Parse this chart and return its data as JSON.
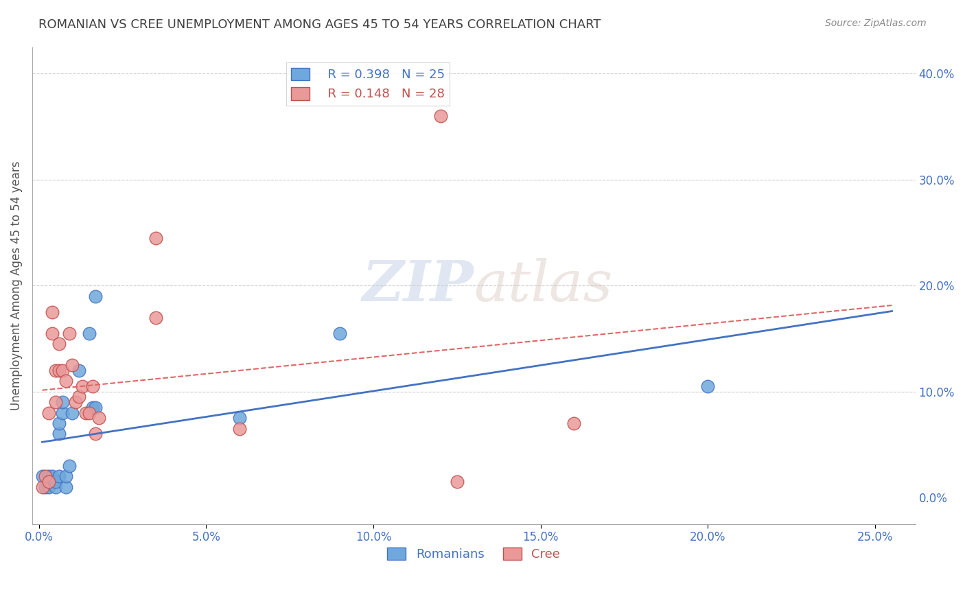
{
  "title": "ROMANIAN VS CREE UNEMPLOYMENT AMONG AGES 45 TO 54 YEARS CORRELATION CHART",
  "source": "Source: ZipAtlas.com",
  "xlabel_ticks": [
    0.0,
    0.05,
    0.1,
    0.15,
    0.2,
    0.25
  ],
  "ylabel_ticks": [
    0.0,
    0.1,
    0.2,
    0.3,
    0.4
  ],
  "xlim": [
    -0.002,
    0.262
  ],
  "ylim": [
    -0.025,
    0.425
  ],
  "ylabel": "Unemployment Among Ages 45 to 54 years",
  "romanians_color": "#6fa8dc",
  "cree_color": "#ea9999",
  "romanians_line_color": "#4472c4",
  "cree_line_color": "#e06666",
  "cree_edge_color": "#c0504d",
  "R_romanians": 0.398,
  "N_romanians": 25,
  "R_cree": 0.148,
  "N_cree": 28,
  "romanians_x": [
    0.001,
    0.002,
    0.003,
    0.003,
    0.004,
    0.004,
    0.005,
    0.005,
    0.006,
    0.006,
    0.006,
    0.007,
    0.007,
    0.008,
    0.008,
    0.009,
    0.01,
    0.012,
    0.015,
    0.016,
    0.017,
    0.017,
    0.06,
    0.09,
    0.2
  ],
  "romanians_y": [
    0.02,
    0.01,
    0.01,
    0.02,
    0.015,
    0.02,
    0.01,
    0.015,
    0.02,
    0.06,
    0.07,
    0.08,
    0.09,
    0.01,
    0.02,
    0.03,
    0.08,
    0.12,
    0.155,
    0.085,
    0.085,
    0.19,
    0.075,
    0.155,
    0.105
  ],
  "cree_x": [
    0.001,
    0.002,
    0.003,
    0.003,
    0.004,
    0.004,
    0.005,
    0.005,
    0.006,
    0.006,
    0.007,
    0.008,
    0.009,
    0.01,
    0.011,
    0.012,
    0.013,
    0.014,
    0.015,
    0.016,
    0.017,
    0.018,
    0.035,
    0.035,
    0.06,
    0.12,
    0.125,
    0.16
  ],
  "cree_y": [
    0.01,
    0.02,
    0.015,
    0.08,
    0.155,
    0.175,
    0.09,
    0.12,
    0.12,
    0.145,
    0.12,
    0.11,
    0.155,
    0.125,
    0.09,
    0.095,
    0.105,
    0.08,
    0.08,
    0.105,
    0.06,
    0.075,
    0.245,
    0.17,
    0.065,
    0.36,
    0.015,
    0.07
  ],
  "watermark_zip": "ZIP",
  "watermark_atlas": "atlas",
  "background_color": "#ffffff",
  "grid_color": "#cccccc",
  "title_color": "#404040",
  "tick_label_color": "#4472c4"
}
